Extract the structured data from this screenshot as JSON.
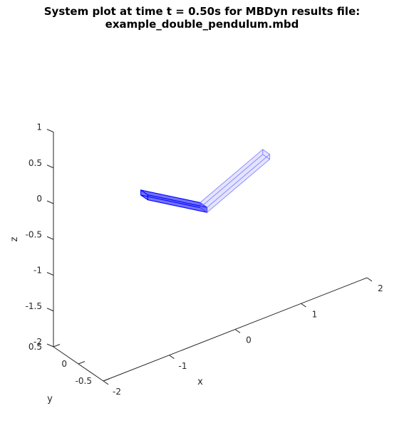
{
  "figure": {
    "title_line1": "System plot at time t = 0.50s for MBDyn results file:",
    "title_line2": "example_double_pendulum.mbd"
  },
  "chart_data": {
    "type": "3d-line",
    "title": "System plot at time t = 0.50s for MBDyn results file: example_double_pendulum.mbd",
    "xlabel": "x",
    "ylabel": "y",
    "zlabel": "z",
    "xlim": [
      -2,
      2
    ],
    "ylim": [
      -0.5,
      0.5
    ],
    "zlim": [
      -2,
      1
    ],
    "x_ticks": [
      -2,
      -1,
      0,
      1,
      2
    ],
    "x_tick_labels": [
      "-2",
      "-1",
      "0",
      "1",
      "2"
    ],
    "y_ticks": [
      -0.5,
      0,
      0.5
    ],
    "y_tick_labels": [
      "-0.5",
      "0",
      "0.5"
    ],
    "z_ticks": [
      -2,
      -1.5,
      -1,
      -0.5,
      0,
      0.5,
      1
    ],
    "z_tick_labels": [
      "-2",
      "-1.5",
      "-1",
      "-0.5",
      "0",
      "0.5",
      "1"
    ],
    "grid": false,
    "bodies": [
      {
        "color": "#0000ff",
        "opacity": 0.55,
        "start": [
          -1.0,
          0.0,
          0.0
        ],
        "end": [
          -0.1,
          0.0,
          -0.5
        ]
      },
      {
        "color": "#6b6bff",
        "opacity": 0.16,
        "start": [
          -0.1,
          0.0,
          -0.5
        ],
        "end": [
          0.85,
          0.0,
          -0.1
        ]
      }
    ]
  }
}
